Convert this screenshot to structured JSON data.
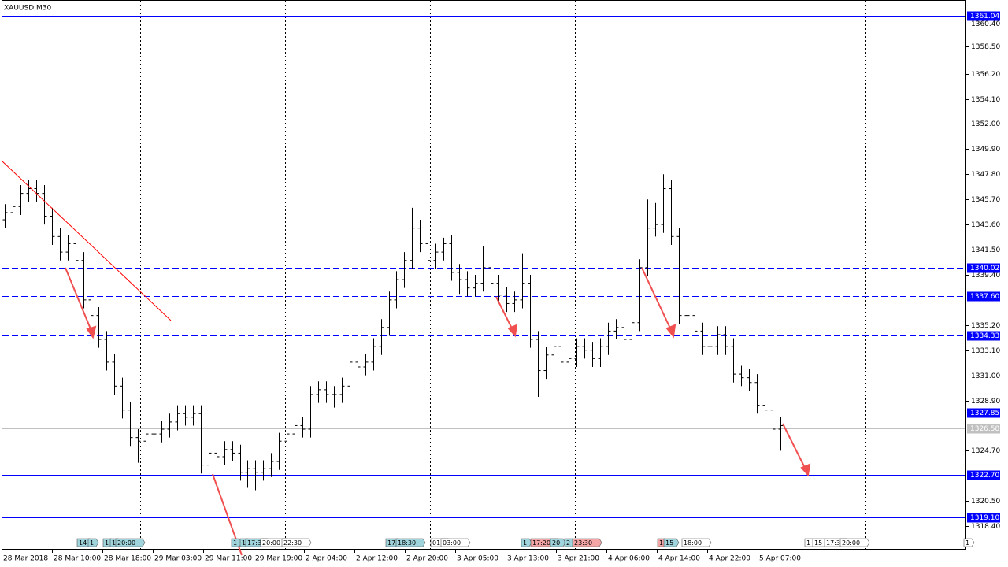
{
  "chart_data": {
    "type": "ohlc",
    "title": "XAUUSD,M30",
    "ylim": [
      1316.5,
      1362.36
    ],
    "yticks": [
      {
        "value": 1360.4,
        "label": "1360.40"
      },
      {
        "value": 1358.5,
        "label": "1358.50"
      },
      {
        "value": 1356.2,
        "label": "1356.20"
      },
      {
        "value": 1354.1,
        "label": "1354.10"
      },
      {
        "value": 1352.0,
        "label": "1352.00"
      },
      {
        "value": 1349.9,
        "label": "1349.90"
      },
      {
        "value": 1347.8,
        "label": "1347.80"
      },
      {
        "value": 1345.7,
        "label": "1345.70"
      },
      {
        "value": 1343.6,
        "label": "1343.60"
      },
      {
        "value": 1341.5,
        "label": "1341.50"
      },
      {
        "value": 1339.4,
        "label": "1339.40"
      },
      {
        "value": 1335.2,
        "label": "1335.20"
      },
      {
        "value": 1333.1,
        "label": "1333.10"
      },
      {
        "value": 1331.0,
        "label": "1331.00"
      },
      {
        "value": 1328.9,
        "label": "1328.90"
      },
      {
        "value": 1324.7,
        "label": "1324.70"
      },
      {
        "value": 1320.5,
        "label": "1320.50"
      },
      {
        "value": 1318.4,
        "label": "1318.40"
      }
    ],
    "x_labels": [
      "28 Mar 2018",
      "28 Mar 10:00",
      "28 Mar 18:00",
      "29 Mar 03:00",
      "29 Mar 11:00",
      "29 Mar 19:00",
      "2 Apr 04:00",
      "2 Apr 12:00",
      "2 Apr 20:00",
      "3 Apr 05:00",
      "3 Apr 13:00",
      "3 Apr 21:00",
      "4 Apr 06:00",
      "4 Apr 14:00",
      "4 Apr 22:00",
      "5 Apr 07:00"
    ],
    "bar_color": "#000000",
    "open": [
      1344.0,
      1344.6,
      1345.1,
      1346.2,
      1346.6,
      1346.2,
      1344.3,
      1342.6,
      1341.3,
      1342.0,
      1340.6,
      1337.3,
      1336.0,
      1334.0,
      1332.1,
      1330.1,
      1328.1,
      1325.8,
      1325.5,
      1326.1,
      1326.1,
      1326.5,
      1327.1,
      1327.8,
      1327.5,
      1327.8,
      1323.5,
      1324.5,
      1324.2,
      1324.8,
      1324.5,
      1322.9,
      1323.2,
      1322.9,
      1323.2,
      1323.8,
      1325.5,
      1326.1,
      1326.8,
      1326.5,
      1329.4,
      1329.8,
      1329.4,
      1329.4,
      1330.1,
      1332.1,
      1331.7,
      1332.1,
      1333.4,
      1335.0,
      1337.3,
      1339.0,
      1340.6,
      1343.3,
      1342.0,
      1340.6,
      1341.3,
      1342.0,
      1339.6,
      1339.0,
      1338.3,
      1338.7,
      1340.0,
      1338.7,
      1337.7,
      1337.0,
      1337.3,
      1338.7,
      1334.0,
      1331.4,
      1332.7,
      1333.4,
      1332.1,
      1332.4,
      1333.4,
      1333.1,
      1332.4,
      1333.4,
      1334.7,
      1335.0,
      1334.0,
      1335.4,
      1340.0,
      1343.3,
      1343.6,
      1346.6,
      1342.6,
      1336.0,
      1336.0,
      1334.7,
      1333.4,
      1333.4,
      1334.4,
      1333.4,
      1331.1,
      1330.8,
      1330.4,
      1328.5,
      1328.1,
      1326.5
    ],
    "high": [
      1345.3,
      1345.8,
      1346.9,
      1347.3,
      1347.3,
      1346.9,
      1345.0,
      1343.3,
      1342.7,
      1342.7,
      1341.3,
      1338.0,
      1336.7,
      1334.7,
      1332.8,
      1330.8,
      1328.8,
      1326.5,
      1326.8,
      1326.8,
      1327.2,
      1327.8,
      1328.5,
      1328.5,
      1328.5,
      1328.5,
      1325.2,
      1326.7,
      1325.5,
      1325.5,
      1325.2,
      1323.9,
      1323.9,
      1323.9,
      1324.5,
      1326.2,
      1326.8,
      1327.5,
      1327.5,
      1330.1,
      1330.5,
      1330.5,
      1330.1,
      1330.8,
      1332.8,
      1332.8,
      1332.8,
      1334.1,
      1335.7,
      1338.0,
      1339.7,
      1341.3,
      1345.0,
      1344.0,
      1342.7,
      1342.0,
      1342.5,
      1342.7,
      1340.3,
      1339.7,
      1339.4,
      1341.8,
      1340.7,
      1339.4,
      1338.4,
      1338.0,
      1341.2,
      1339.4,
      1334.7,
      1333.4,
      1334.1,
      1334.1,
      1333.1,
      1334.1,
      1334.1,
      1333.8,
      1334.1,
      1335.4,
      1335.7,
      1335.7,
      1336.1,
      1340.7,
      1345.7,
      1345.4,
      1347.8,
      1347.3,
      1343.3,
      1337.3,
      1336.7,
      1335.4,
      1334.1,
      1335.1,
      1335.1,
      1334.1,
      1331.8,
      1331.5,
      1331.1,
      1329.2,
      1328.8,
      1327.5
    ],
    "low": [
      1343.3,
      1343.9,
      1344.4,
      1345.5,
      1345.5,
      1343.6,
      1341.9,
      1340.6,
      1340.6,
      1339.9,
      1336.6,
      1335.3,
      1333.3,
      1331.4,
      1329.4,
      1327.4,
      1325.1,
      1323.7,
      1324.8,
      1325.4,
      1325.4,
      1325.8,
      1326.4,
      1326.8,
      1326.8,
      1322.8,
      1322.8,
      1323.5,
      1323.5,
      1323.8,
      1322.2,
      1321.6,
      1321.4,
      1322.2,
      1322.5,
      1323.1,
      1324.8,
      1325.4,
      1325.8,
      1325.8,
      1328.7,
      1328.7,
      1328.3,
      1328.7,
      1329.4,
      1331.0,
      1331.0,
      1331.4,
      1332.7,
      1334.3,
      1336.6,
      1338.3,
      1339.9,
      1341.3,
      1339.9,
      1339.9,
      1340.6,
      1338.9,
      1337.8,
      1337.6,
      1337.6,
      1338.0,
      1338.0,
      1337.0,
      1336.3,
      1336.3,
      1336.6,
      1333.3,
      1329.2,
      1330.7,
      1332.0,
      1330.2,
      1331.4,
      1331.7,
      1332.4,
      1331.7,
      1331.7,
      1332.7,
      1334.0,
      1333.3,
      1333.3,
      1334.7,
      1339.3,
      1342.6,
      1342.9,
      1341.9,
      1335.3,
      1334.3,
      1334.0,
      1332.7,
      1332.7,
      1332.7,
      1332.7,
      1330.4,
      1330.1,
      1329.7,
      1327.8,
      1327.4,
      1325.8,
      1324.7
    ],
    "close": [
      1344.6,
      1345.1,
      1346.2,
      1346.6,
      1346.2,
      1344.3,
      1342.6,
      1341.3,
      1342.0,
      1340.6,
      1337.3,
      1336.0,
      1334.0,
      1332.1,
      1330.1,
      1328.1,
      1325.8,
      1325.5,
      1326.1,
      1326.1,
      1326.5,
      1327.1,
      1327.8,
      1327.5,
      1327.8,
      1323.5,
      1324.5,
      1324.2,
      1324.8,
      1324.5,
      1322.9,
      1323.2,
      1322.9,
      1323.2,
      1323.8,
      1325.5,
      1326.1,
      1326.8,
      1326.5,
      1329.4,
      1329.8,
      1329.4,
      1329.4,
      1330.1,
      1332.1,
      1331.7,
      1332.1,
      1333.4,
      1335.0,
      1337.3,
      1339.0,
      1340.6,
      1343.3,
      1342.0,
      1340.6,
      1341.3,
      1342.0,
      1339.6,
      1339.0,
      1338.3,
      1338.7,
      1340.0,
      1338.7,
      1337.7,
      1337.0,
      1337.3,
      1338.7,
      1334.0,
      1331.4,
      1332.7,
      1333.4,
      1332.1,
      1332.4,
      1333.4,
      1333.1,
      1332.4,
      1333.4,
      1334.7,
      1335.0,
      1334.0,
      1335.4,
      1340.0,
      1343.3,
      1343.6,
      1346.6,
      1342.6,
      1336.0,
      1336.0,
      1334.7,
      1333.4,
      1333.4,
      1334.4,
      1333.4,
      1331.1,
      1330.8,
      1330.4,
      1328.5,
      1328.1,
      1326.5,
      1326.8
    ],
    "levels": [
      {
        "price": 1361.04,
        "label": "1361.04",
        "style": "solid",
        "color": "#0000ff"
      },
      {
        "price": 1340.02,
        "label": "1340.02",
        "style": "dashed",
        "color": "#0000ff"
      },
      {
        "price": 1337.6,
        "label": "1337.60",
        "style": "dashed",
        "color": "#0000ff"
      },
      {
        "price": 1334.33,
        "label": "1334.33",
        "style": "dashed",
        "color": "#0000ff"
      },
      {
        "price": 1327.85,
        "label": "1327.85",
        "style": "dashed",
        "color": "#0000ff"
      },
      {
        "price": 1326.58,
        "label": "1326.58",
        "style": "solid",
        "color": "#c0c0c0"
      },
      {
        "price": 1322.7,
        "label": "1322.70",
        "style": "solid",
        "color": "#0000ff"
      },
      {
        "price": 1319.1,
        "label": "1319.10",
        "style": "solid",
        "color": "#0000ff"
      }
    ],
    "events": [
      {
        "label": "14",
        "color": "#9fd4dc"
      },
      {
        "label": "1",
        "color": "#9fd4dc"
      },
      {
        "label": "1",
        "color": "#9fd4dc"
      },
      {
        "label": "1",
        "color": "#9fd4dc"
      },
      {
        "label": "20:00",
        "color": "#9fd4dc"
      },
      {
        "label": "1",
        "color": "#9fd4dc"
      },
      {
        "label": "1",
        "color": "#9fd4dc"
      },
      {
        "label": "17:3",
        "color": "#9fd4dc"
      },
      {
        "label": "20:00",
        "color": "#ffffff"
      },
      {
        "label": "22:30",
        "color": "#ffffff"
      },
      {
        "label": "17",
        "color": "#9fd4dc"
      },
      {
        "label": "18:30",
        "color": "#9fd4dc"
      },
      {
        "label": "01:",
        "color": "#ffffff"
      },
      {
        "label": "03:00",
        "color": "#ffffff"
      },
      {
        "label": "1",
        "color": "#9fd4dc"
      },
      {
        "label": "17:20",
        "color": "#f4a6a6"
      },
      {
        "label": "20",
        "color": "#9fd4dc"
      },
      {
        "label": "2",
        "color": "#9fd4dc"
      },
      {
        "label": "23:30",
        "color": "#f4a6a6"
      },
      {
        "label": "1",
        "color": "#f4a6a6"
      },
      {
        "label": "15",
        "color": "#9fd4dc"
      },
      {
        "label": "18:00",
        "color": "#ffffff"
      },
      {
        "label": "1",
        "color": "#ffffff"
      },
      {
        "label": "15",
        "color": "#ffffff"
      },
      {
        "label": "17:3",
        "color": "#ffffff"
      },
      {
        "label": "20:00",
        "color": "#ffffff"
      },
      {
        "label": "1",
        "color": "#ffffff"
      }
    ]
  }
}
